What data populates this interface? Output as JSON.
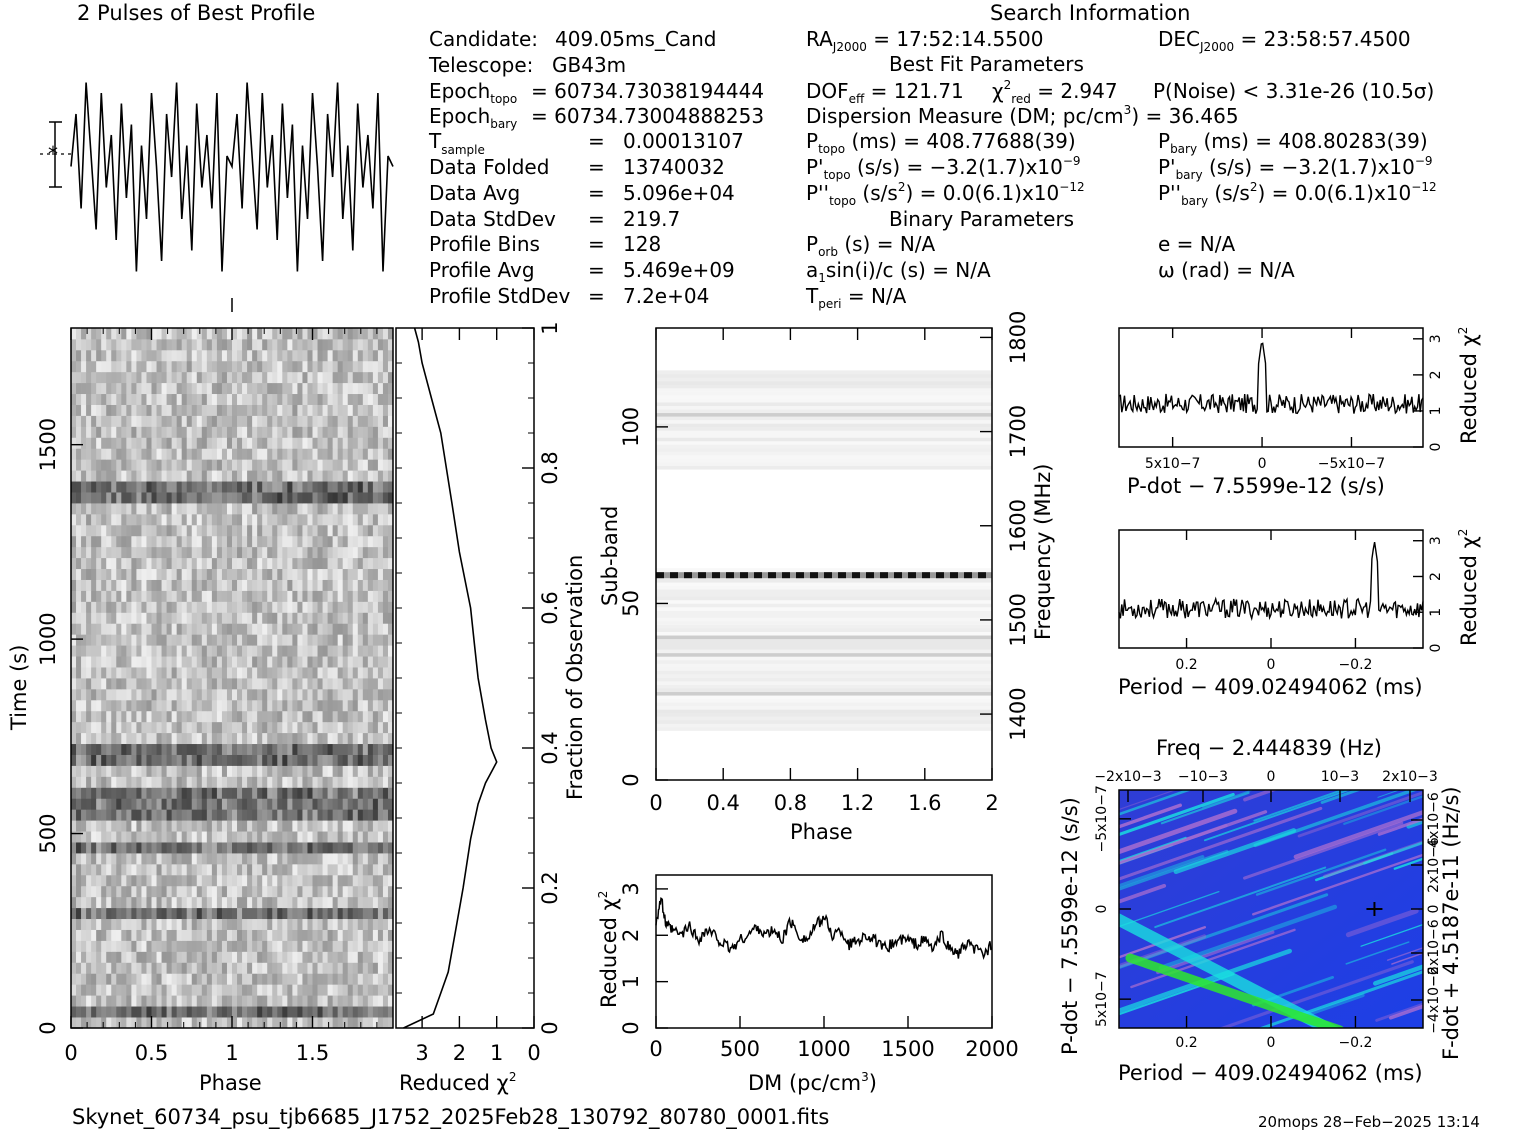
{
  "header": {
    "profile_title": "2 Pulses of Best Profile",
    "search_title": "Search Information",
    "best_fit_title": "Best Fit Parameters",
    "binary_title": "Binary Parameters"
  },
  "info_left": [
    {
      "label": "Candidate:",
      "value": "409.05ms_Cand"
    },
    {
      "label": "Telescope:",
      "value": "GB43m"
    },
    {
      "label": "Epoch",
      "sub": "topo",
      "value": "= 60734.73038194444"
    },
    {
      "label": "Epoch",
      "sub": "bary",
      "value": "= 60734.73004888253"
    },
    {
      "label": "T",
      "sub": "sample",
      "value": "0.00013107"
    },
    {
      "label": "Data Folded",
      "value": "13740032"
    },
    {
      "label": "Data Avg",
      "value": "5.096e+04"
    },
    {
      "label": "Data StdDev",
      "value": "219.7"
    },
    {
      "label": "Profile Bins",
      "value": "128"
    },
    {
      "label": "Profile Avg",
      "value": "5.469e+09"
    },
    {
      "label": "Profile StdDev",
      "value": "7.2e+04"
    }
  ],
  "info_mid": {
    "ra": "= 17:52:14.5500",
    "dec": "= 23:58:57.4500",
    "dof": "= 121.71",
    "chi2": "= 2.947",
    "pnoise": "P(Noise) < 3.31e-26   (10.5σ)",
    "dm_line": "Dispersion Measure (DM; pc/cm",
    "dm_value": ") = 36.465",
    "ptopo": "(ms) =  408.77688(39)",
    "pbary": "(ms) =  408.80283(39)",
    "pdot_topo": "(s/s) = −3.2(1.7)x10",
    "pdot_topo_exp": "−9",
    "pdot_bary": "(s/s) = −3.2(1.7)x10",
    "pdot_bary_exp": "−9",
    "pddot_topo": "= 0.0(6.1)x10",
    "pddot_topo_exp": "−12",
    "pddot_bary": "= 0.0(6.1)x10",
    "pddot_bary_exp": "−12",
    "porb": "(s) = N/A",
    "a1": "sin(i)/c (s) = N/A",
    "tperi": "= N/A",
    "ecc": "e = N/A",
    "omega": "ω (rad) = N/A"
  },
  "footer": {
    "filename": "Skynet_60734_psu_tjb6685_J1752_2025Feb28_130792_80780_0001.fits",
    "stamp": "20mops 28−Feb−2025 13:14"
  },
  "colors": {
    "accent_blue": "#1a3cff",
    "accent_cyan": "#19e0e0",
    "accent_green": "#2ee82e",
    "accent_magenta": "#b070d0"
  },
  "chart_data": [
    {
      "type": "line",
      "title": "2 Pulses of Best Profile",
      "xlabel": "",
      "ylabel": "",
      "note": "noise-like pulse profile, two periods, no axes ticks printed",
      "x": [
        0,
        0.031,
        0.063,
        0.094,
        0.125,
        0.156,
        0.188,
        0.219,
        0.25,
        0.281,
        0.313,
        0.344,
        0.375,
        0.406,
        0.438,
        0.469,
        0.5,
        0.531,
        0.563,
        0.594,
        0.625,
        0.656,
        0.688,
        0.719,
        0.75,
        0.781,
        0.813,
        0.844,
        0.875,
        0.906,
        0.938,
        0.969,
        1.0,
        1.031,
        1.063,
        1.094,
        1.125,
        1.156,
        1.188,
        1.219,
        1.25,
        1.281,
        1.313,
        1.344,
        1.375,
        1.406,
        1.438,
        1.469,
        1.5,
        1.531,
        1.563,
        1.594,
        1.625,
        1.656,
        1.688,
        1.719,
        1.75,
        1.781,
        1.813,
        1.844,
        1.875,
        1.906,
        1.938,
        1.969,
        2.0
      ],
      "values": [
        0.55,
        0.8,
        0.35,
        0.95,
        0.6,
        0.25,
        0.9,
        0.45,
        0.7,
        0.2,
        0.85,
        0.4,
        0.75,
        0.05,
        0.65,
        0.3,
        0.9,
        0.55,
        0.1,
        0.8,
        0.5,
        0.95,
        0.3,
        0.65,
        0.15,
        0.85,
        0.45,
        0.7,
        0.35,
        0.9,
        0.05,
        0.6,
        0.55,
        0.8,
        0.35,
        0.95,
        0.6,
        0.25,
        0.9,
        0.45,
        0.7,
        0.2,
        0.85,
        0.4,
        0.75,
        0.05,
        0.65,
        0.3,
        0.9,
        0.55,
        0.1,
        0.8,
        0.5,
        0.95,
        0.3,
        0.65,
        0.15,
        0.85,
        0.45,
        0.7,
        0.35,
        0.9,
        0.05,
        0.6,
        0.55
      ]
    },
    {
      "type": "heatmap",
      "xlabel": "Phase",
      "ylabel": "Time (s)",
      "xticks": [
        "0",
        "0.5",
        "1",
        "1.5"
      ],
      "yticks": [
        "0",
        "500",
        "1000",
        "1500"
      ],
      "xlim": [
        0,
        2
      ],
      "ylim": [
        0,
        1800
      ],
      "rows": 64,
      "dark_rows_time_s": [
        40,
        300,
        470,
        560,
        600,
        700,
        1380
      ]
    },
    {
      "type": "line",
      "xlabel": "Reduced χ2",
      "ylabel": "Fraction of Observation",
      "xticks": [
        "3",
        "2",
        "1",
        "0"
      ],
      "yticks": [
        "0",
        "0.2",
        "0.4",
        "0.6",
        "0.8",
        "1"
      ],
      "xlim": [
        3.7,
        0
      ],
      "ylim": [
        0,
        1
      ],
      "x": [
        3.5,
        2.7,
        2.5,
        2.3,
        2.1,
        1.9,
        1.7,
        1.5,
        1.3,
        1.1,
        1.0,
        1.15,
        1.3,
        1.5,
        1.6,
        1.7,
        2.0,
        2.2,
        2.5,
        2.75,
        3.0,
        3.1,
        3.2
      ],
      "y": [
        0,
        0.02,
        0.05,
        0.08,
        0.14,
        0.2,
        0.27,
        0.32,
        0.35,
        0.37,
        0.38,
        0.4,
        0.44,
        0.5,
        0.55,
        0.6,
        0.68,
        0.75,
        0.85,
        0.9,
        0.95,
        0.98,
        1.0
      ]
    },
    {
      "type": "heatmap",
      "xlabel": "Phase",
      "ylabel": "Sub-band",
      "y2label": "Frequency (MHz)",
      "xticks": [
        "0",
        "0.4",
        "0.8",
        "1.2",
        "1.6",
        "2"
      ],
      "yticks": [
        "0",
        "50",
        "100"
      ],
      "y2ticks": [
        "1400",
        "1500",
        "1600",
        "1700",
        "1800"
      ],
      "xlim": [
        0,
        2
      ],
      "ylim": [
        0,
        128
      ],
      "bright_band_subband": 58
    },
    {
      "type": "line",
      "xlabel": "DM (pc/cm3)",
      "ylabel": "Reduced χ2",
      "xticks": [
        "0",
        "500",
        "1000",
        "1500",
        "2000"
      ],
      "yticks": [
        "0",
        "1",
        "2",
        "3"
      ],
      "xlim": [
        0,
        2000
      ],
      "ylim": [
        0,
        3.3
      ],
      "x": [
        0,
        30,
        60,
        100,
        150,
        200,
        250,
        300,
        350,
        400,
        450,
        500,
        550,
        600,
        650,
        700,
        750,
        800,
        850,
        900,
        950,
        1000,
        1050,
        1100,
        1150,
        1200,
        1250,
        1300,
        1350,
        1400,
        1450,
        1500,
        1550,
        1600,
        1650,
        1700,
        1750,
        1800,
        1850,
        1900,
        1950,
        2000
      ],
      "y": [
        2.3,
        2.8,
        2.2,
        2.1,
        2.0,
        2.2,
        1.9,
        2.1,
        2.0,
        1.8,
        1.7,
        1.9,
        2.0,
        2.2,
        2.0,
        2.1,
        1.9,
        2.3,
        2.0,
        1.9,
        2.2,
        2.4,
        2.0,
        2.1,
        1.8,
        1.9,
        2.0,
        1.9,
        1.7,
        1.8,
        1.9,
        1.9,
        1.8,
        1.9,
        1.7,
        2.0,
        1.7,
        1.6,
        1.8,
        1.7,
        1.6,
        1.8
      ]
    },
    {
      "type": "line",
      "xlabel": "P-dot − 7.5599e-12 (s/s)",
      "ylabel": "Reduced χ2",
      "xticks": [
        "5x10−7",
        "0",
        "−5x10−7"
      ],
      "yticks": [
        "0",
        "1",
        "2",
        "3"
      ],
      "xlim": [
        8e-07,
        -9e-07
      ],
      "ylim": [
        0,
        3.3
      ],
      "peak": {
        "x": 0,
        "y": 3.0
      },
      "baseline": 1.2
    },
    {
      "type": "line",
      "xlabel": "Period − 409.02494062 (ms)",
      "ylabel": "Reduced χ2",
      "xticks": [
        "0.2",
        "0",
        "−0.2"
      ],
      "yticks": [
        "0",
        "1",
        "2",
        "3"
      ],
      "xlim": [
        0.36,
        -0.36
      ],
      "ylim": [
        0,
        3.3
      ],
      "peak": {
        "x": -0.245,
        "y": 3.0
      },
      "baseline": 1.1
    },
    {
      "type": "heatmap",
      "title": "Freq − 2.444839 (Hz)",
      "xlabel": "Period − 409.02494062 (ms)",
      "ylabel": "P-dot − 7.5599e-12 (s/s)",
      "y2label": "F-dot + 4.5187e-11 (Hz/s)",
      "xticks": [
        "0.2",
        "0",
        "−0.2"
      ],
      "x2ticks": [
        "−2x10−3",
        "−10−3",
        "0",
        "10−3",
        "2x10−3"
      ],
      "yticks": [
        "−5x10−7",
        "0",
        "5x10−7"
      ],
      "y2ticks": [
        "4x10−6",
        "2x10−6",
        "0",
        "−2x10−6",
        "−4x10−6"
      ],
      "best": {
        "period": -0.245,
        "pdot": 0
      }
    }
  ]
}
